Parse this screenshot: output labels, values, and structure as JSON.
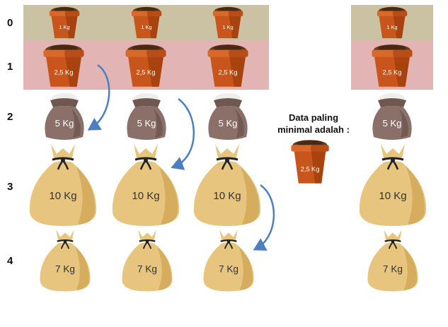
{
  "row_labels": [
    "0",
    "1",
    "2",
    "3",
    "4"
  ],
  "labels": {
    "pot_1kg": "1 Kg",
    "pot_2_5kg": "2,5 Kg",
    "sack_5kg": "5 Kg",
    "bag_10kg": "10 Kg",
    "bag_7kg": "7 Kg"
  },
  "note": {
    "line1": "Data paling",
    "line2": "minimal adalah :",
    "answer_label": "2,5 Kg"
  },
  "colors": {
    "row0_band": "#cbc2a4",
    "row1_band": "#e2b4b4",
    "pot": "#c8561c",
    "sack": "#8a7068",
    "bag": "#e7c57e",
    "arrow": "#4a7fc1"
  }
}
